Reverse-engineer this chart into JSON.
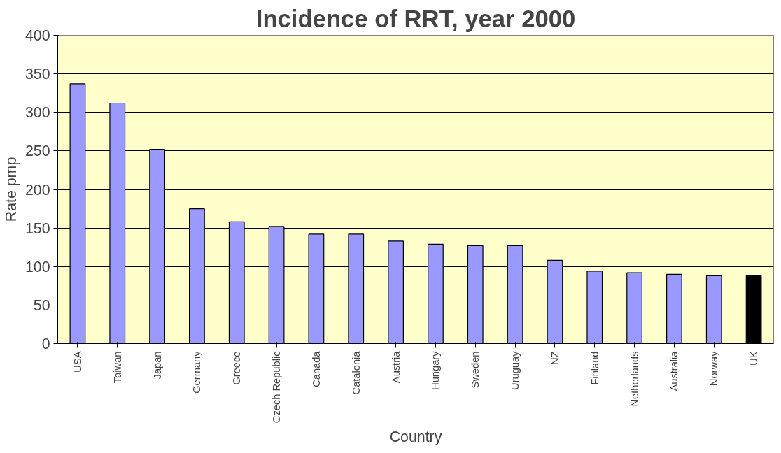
{
  "chart_data": {
    "type": "bar",
    "title": "Incidence of RRT, year 2000",
    "xlabel": "Country",
    "ylabel": "Rate pmp",
    "categories": [
      "USA",
      "Taiwan",
      "Japan",
      "Germany",
      "Greece",
      "Czech Republic",
      "Canada",
      "Catalonia",
      "Austria",
      "Hungary",
      "Sweden",
      "Uruguay",
      "NZ",
      "Finland",
      "Netherlands",
      "Australia",
      "Norway",
      "UK"
    ],
    "values": [
      337,
      312,
      252,
      175,
      158,
      152,
      142,
      142,
      133,
      129,
      127,
      127,
      108,
      94,
      92,
      90,
      88,
      88
    ],
    "colors": [
      "#9999ff",
      "#9999ff",
      "#9999ff",
      "#9999ff",
      "#9999ff",
      "#9999ff",
      "#9999ff",
      "#9999ff",
      "#9999ff",
      "#9999ff",
      "#9999ff",
      "#9999ff",
      "#9999ff",
      "#9999ff",
      "#9999ff",
      "#9999ff",
      "#9999ff",
      "#000000"
    ],
    "ylim": [
      0,
      400
    ],
    "yticks": [
      0,
      50,
      100,
      150,
      200,
      250,
      300,
      350,
      400
    ],
    "grid": "y"
  }
}
